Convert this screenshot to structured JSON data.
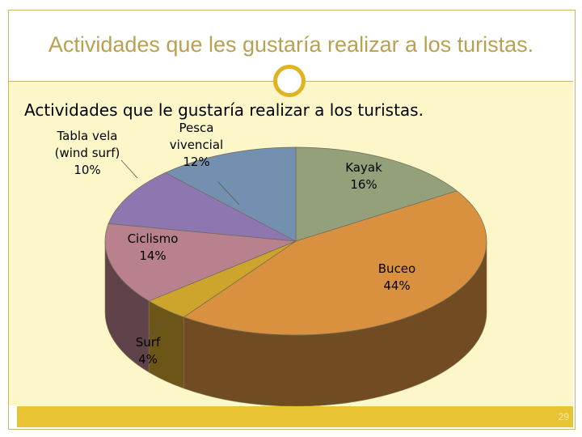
{
  "slide": {
    "title": "Actividades que les gustaría realizar a los turistas.",
    "page_number": "29",
    "accent_color": "#e9c432",
    "ring_icon": "circle-ring-icon"
  },
  "chart_data": {
    "type": "pie",
    "title": "Actividades que le gustaría realizar  a los turistas.",
    "three_d": true,
    "slices": [
      {
        "label": "Kayak",
        "value": 16,
        "display": "16%",
        "color": "#94a07a"
      },
      {
        "label": "Buceo",
        "value": 44,
        "display": "44%",
        "color": "#d99140"
      },
      {
        "label": "Surf",
        "value": 4,
        "display": "4%",
        "color": "#cda52d"
      },
      {
        "label": "Ciclismo",
        "value": 14,
        "display": "14%",
        "color": "#b9808e"
      },
      {
        "label": "Tabla vela (wind surf)",
        "value": 10,
        "display": "10%",
        "color": "#8e77b0"
      },
      {
        "label": "Pesca vivencial",
        "value": 12,
        "display": "12%",
        "color": "#7390b0"
      }
    ]
  }
}
